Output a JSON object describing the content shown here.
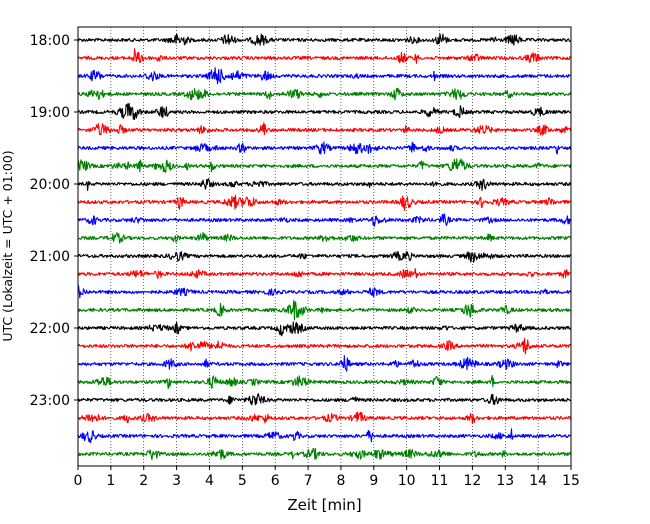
{
  "chart_data": {
    "type": "line",
    "xlabel": "Zeit  [min]",
    "ylabel": "UTC (Lokalzeit = UTC + 01:00)",
    "xlim": [
      0,
      15
    ],
    "x_ticks": [
      "0",
      "1",
      "2",
      "3",
      "4",
      "5",
      "6",
      "7",
      "8",
      "9",
      "10",
      "11",
      "12",
      "13",
      "14",
      "15"
    ],
    "y_ticks": [
      {
        "label": "18:00",
        "row": 0
      },
      {
        "label": "19:00",
        "row": 4
      },
      {
        "label": "20:00",
        "row": 8
      },
      {
        "label": "21:00",
        "row": 12
      },
      {
        "label": "22:00",
        "row": 16
      },
      {
        "label": "23:00",
        "row": 20
      }
    ],
    "grid": "vertical-dotted",
    "row_interval_minutes": 15,
    "row_count": 24,
    "colors": [
      "#000000",
      "#ff0000",
      "#0000ff",
      "#008000"
    ],
    "rows": [
      {
        "start": "18:00",
        "color": "#000000"
      },
      {
        "start": "18:15",
        "color": "#ff0000"
      },
      {
        "start": "18:30",
        "color": "#0000ff"
      },
      {
        "start": "18:45",
        "color": "#008000"
      },
      {
        "start": "19:00",
        "color": "#000000"
      },
      {
        "start": "19:15",
        "color": "#ff0000"
      },
      {
        "start": "19:30",
        "color": "#0000ff"
      },
      {
        "start": "19:45",
        "color": "#008000"
      },
      {
        "start": "20:00",
        "color": "#000000"
      },
      {
        "start": "20:15",
        "color": "#ff0000"
      },
      {
        "start": "20:30",
        "color": "#0000ff"
      },
      {
        "start": "20:45",
        "color": "#008000"
      },
      {
        "start": "21:00",
        "color": "#000000"
      },
      {
        "start": "21:15",
        "color": "#ff0000"
      },
      {
        "start": "21:30",
        "color": "#0000ff"
      },
      {
        "start": "21:45",
        "color": "#008000"
      },
      {
        "start": "22:00",
        "color": "#000000"
      },
      {
        "start": "22:15",
        "color": "#ff0000"
      },
      {
        "start": "22:30",
        "color": "#0000ff"
      },
      {
        "start": "22:45",
        "color": "#008000"
      },
      {
        "start": "23:00",
        "color": "#000000"
      },
      {
        "start": "23:15",
        "color": "#ff0000"
      },
      {
        "start": "23:30",
        "color": "#0000ff"
      },
      {
        "start": "23:45",
        "color": "#008000"
      }
    ]
  }
}
